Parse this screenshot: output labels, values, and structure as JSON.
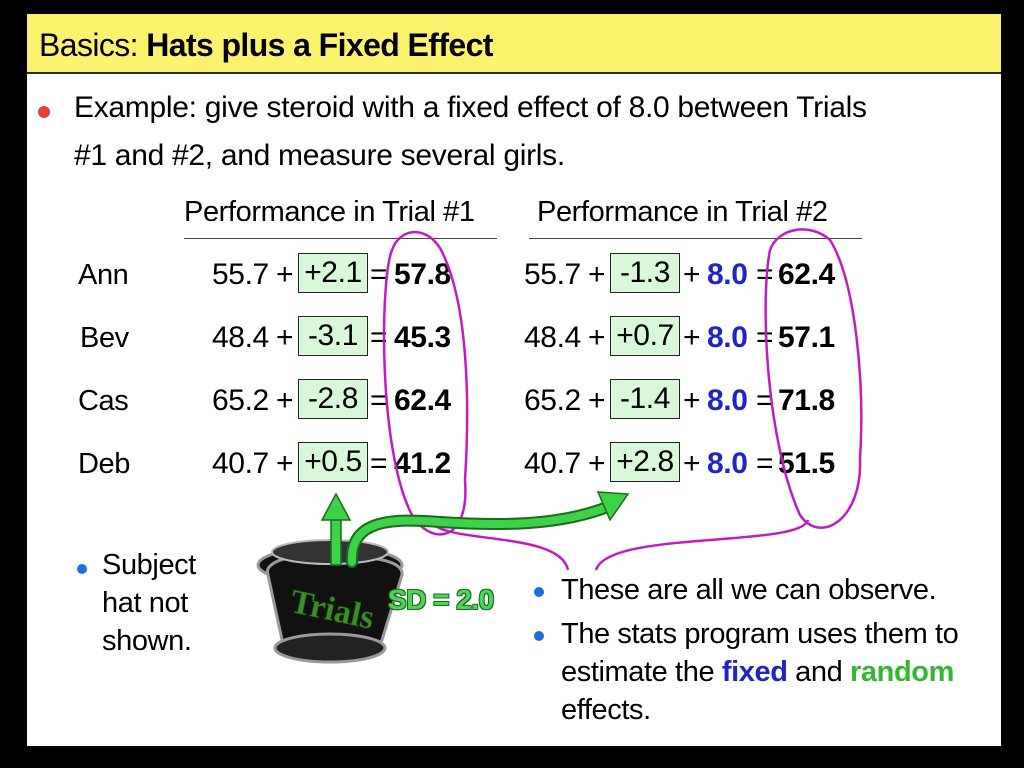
{
  "title": {
    "prefix": "Basics: ",
    "bold": "Hats plus a Fixed Effect"
  },
  "intro": {
    "line1": "Example: give steroid with a fixed effect of 8.0 between Trials",
    "line2": "#1 and #2, and measure several girls."
  },
  "columns": {
    "trial1": "Performance in Trial #1",
    "trial2": "Performance in Trial #2"
  },
  "symbols": {
    "plus": "+",
    "equals": "="
  },
  "fixed_effect_label": "8.0",
  "rows": [
    {
      "name": "Ann",
      "base": "55.7",
      "t1_random": "+2.1",
      "t1_result": "57.8",
      "t2_random": "-1.3",
      "t2_result": "62.4"
    },
    {
      "name": "Bev",
      "base": "48.4",
      "t1_random": "-3.1",
      "t1_result": "45.3",
      "t2_random": "+0.7",
      "t2_result": "57.1"
    },
    {
      "name": "Cas",
      "base": "65.2",
      "t1_random": "-2.8",
      "t1_result": "62.4",
      "t2_random": "-1.4",
      "t2_result": "71.8"
    },
    {
      "name": "Deb",
      "base": "40.7",
      "t1_random": "+0.5",
      "t1_result": "41.2",
      "t2_random": "+2.8",
      "t2_result": "51.5"
    }
  ],
  "hat": {
    "label": "Trials",
    "sd_text": "SD = 2.0"
  },
  "left_note": {
    "line1": "Subject",
    "line2": "hat not",
    "line3": "shown."
  },
  "right_notes": {
    "note1": "These are all we can observe.",
    "note2_line1": "The stats program uses them to",
    "note2_pre": "estimate the ",
    "note2_fixed": "fixed",
    "note2_mid": " and ",
    "note2_random": "random",
    "note2_line3": "effects."
  },
  "colors": {
    "title_bg": "#fbf36e",
    "random_box_bg": "#d9f7d9",
    "fixed_effect": "#1f24c8",
    "random_word": "#33b833",
    "ellipse": "#c21bc4",
    "arrow": "#3ed14a",
    "bullet_main": "#e0403a",
    "bullet_sub": "#1e6fd8"
  },
  "icons": {
    "main_bullet": "red-bullet-dot",
    "sub_bullet": "blue-bullet-dot",
    "hat": "top-hat-icon"
  }
}
